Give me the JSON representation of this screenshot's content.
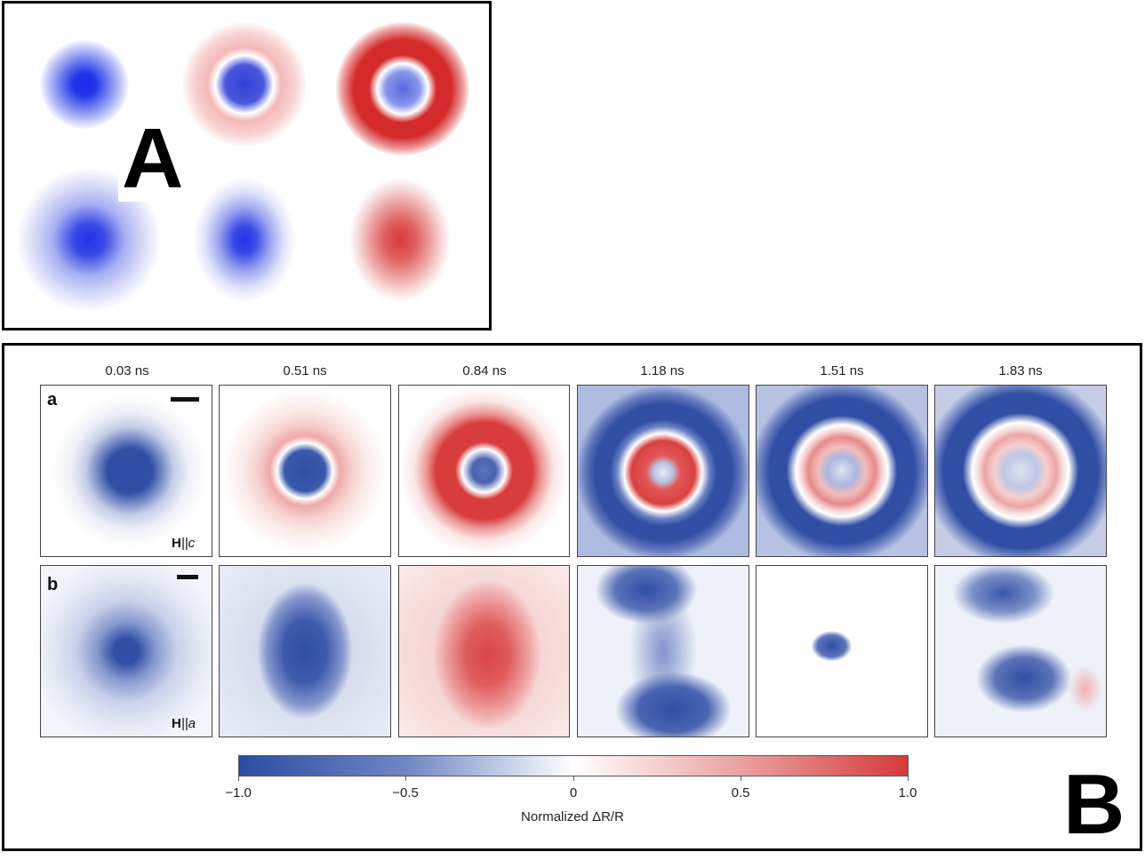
{
  "panel_a": {
    "letter": "A"
  },
  "panel_b": {
    "letter": "B",
    "time_labels": [
      "0.03 ns",
      "0.51 ns",
      "0.84 ns",
      "1.18 ns",
      "1.51 ns",
      "1.83 ns"
    ],
    "row_labels": [
      "a",
      "b"
    ],
    "field_labels": {
      "row_a_bold": "H",
      "row_a_rest": "||c",
      "row_b_bold": "H",
      "row_b_rest": "||a"
    },
    "colorbar": {
      "ticks": [
        "−1.0",
        "−0.5",
        "0",
        "0.5",
        "1.0"
      ],
      "title": "Normalized ΔR/R",
      "negative_color": "#2b4da3",
      "positive_color": "#d63a3a"
    }
  }
}
